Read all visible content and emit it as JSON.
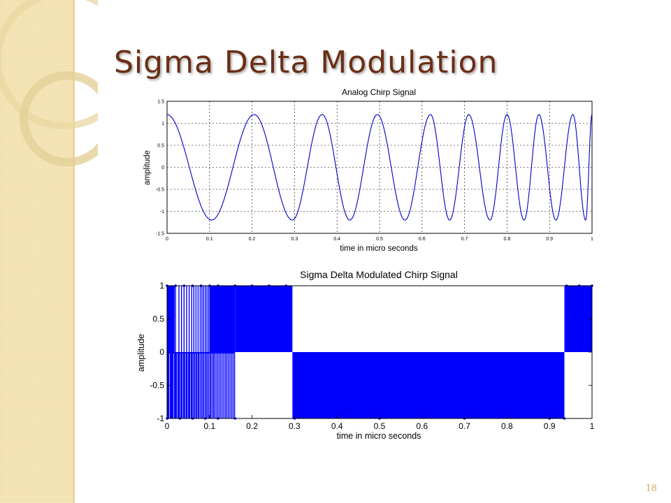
{
  "slide": {
    "title": "Sigma Delta Modulation",
    "page_number": "18",
    "accent_color": "#6b2e16",
    "band_color": "#f4e3b2"
  },
  "chart_data": [
    {
      "type": "line",
      "title": "Analog Chirp Signal",
      "xlabel": "time in micro seconds",
      "ylabel": "amplitude",
      "xlim": [
        0,
        1
      ],
      "ylim": [
        -1.5,
        1.5
      ],
      "xticks": [
        "0",
        "0.1",
        "0.2",
        "0.3",
        "0.4",
        "0.5",
        "0.6",
        "0.7",
        "0.8",
        "0.9",
        "1"
      ],
      "yticks": [
        "-1.5",
        "-1",
        "-0.5",
        "0",
        "0.5",
        "1",
        "1.5"
      ],
      "grid": true,
      "line_color": "#0000cc",
      "series": [
        {
          "x": [
            0,
            0.105,
            0.205,
            0.295,
            0.365,
            0.43,
            0.495,
            0.56,
            0.62,
            0.665,
            0.71,
            0.76,
            0.8,
            0.84,
            0.875,
            0.915,
            0.955,
            0.985,
            1.0
          ],
          "y": [
            1.2,
            -1.2,
            1.2,
            -1.2,
            1.2,
            -1.2,
            1.2,
            -1.2,
            1.2,
            -1.2,
            1.2,
            -1.2,
            1.2,
            -1.2,
            1.2,
            -1.2,
            1.2,
            -1.2,
            1.2
          ]
        }
      ]
    },
    {
      "type": "line",
      "title": "Sigma Delta Modulated Chirp Signal",
      "xlabel": "time in micro seconds",
      "ylabel": "amplitude",
      "xlim": [
        0,
        1
      ],
      "ylim": [
        -1,
        1
      ],
      "xticks": [
        "0",
        "0.1",
        "0.2",
        "0.3",
        "0.4",
        "0.5",
        "0.6",
        "0.7",
        "0.8",
        "0.9",
        "1"
      ],
      "yticks": [
        "-1",
        "-0.5",
        "0",
        "0.5",
        "1"
      ],
      "grid": false,
      "line_color": "#0000ff",
      "positive_blocks": [
        [
          0.16,
          0.295
        ],
        [
          0.935,
          1.0
        ]
      ],
      "negative_blocks": [
        [
          0.295,
          0.935
        ]
      ],
      "oscillating_region": [
        0,
        0.16
      ],
      "positive_spikes": [
        0.012,
        0.02,
        0.028,
        0.034,
        0.04,
        0.046,
        0.052,
        0.058,
        0.063,
        0.068,
        0.073,
        0.078,
        0.082,
        0.086,
        0.09,
        0.094,
        0.098,
        0.102,
        0.106,
        0.11,
        0.113,
        0.116,
        0.119,
        0.122,
        0.125,
        0.128,
        0.131,
        0.134,
        0.137,
        0.14,
        0.143,
        0.146,
        0.149,
        0.152,
        0.155,
        0.158
      ],
      "negative_spikes": [
        0.006,
        0.016,
        0.024,
        0.031,
        0.037,
        0.043,
        0.049,
        0.055,
        0.061,
        0.066,
        0.071,
        0.076,
        0.08,
        0.084,
        0.088,
        0.092,
        0.096,
        0.1,
        0.104,
        0.108,
        0.112,
        0.115,
        0.118,
        0.121,
        0.124,
        0.127,
        0.13,
        0.133,
        0.136,
        0.139,
        0.142,
        0.145,
        0.148,
        0.151,
        0.154,
        0.157
      ]
    }
  ]
}
